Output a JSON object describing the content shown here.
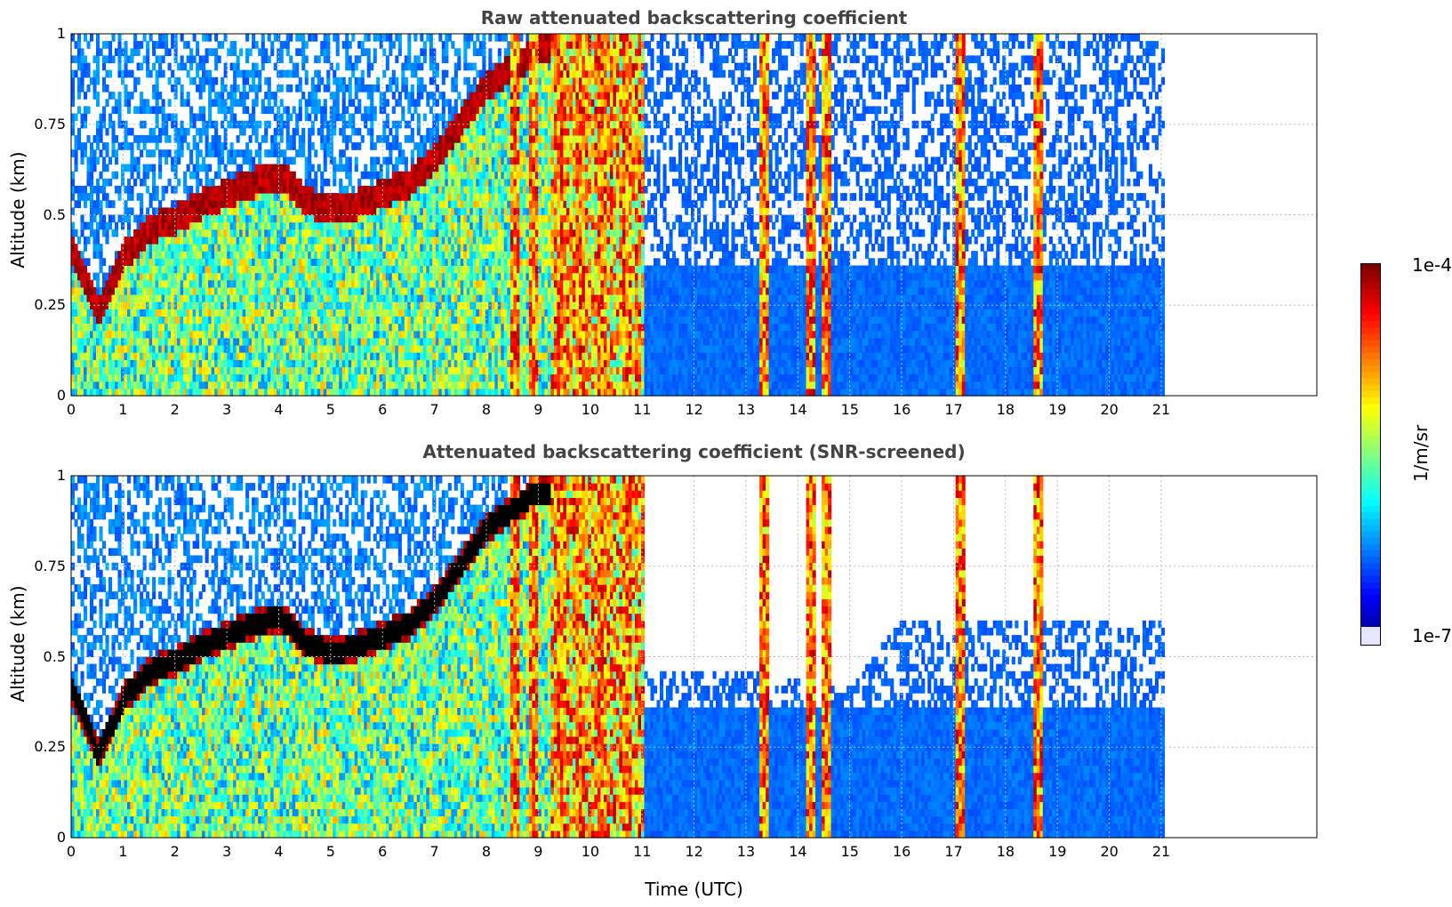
{
  "chart_data": [
    {
      "type": "heatmap",
      "title": "Raw attenuated backscattering coefficient",
      "xlabel": "",
      "ylabel": "Altitude (km)",
      "xlim": [
        0,
        24
      ],
      "ylim": [
        0,
        1
      ],
      "xticks": [
        "0",
        "1",
        "2",
        "3",
        "4",
        "5",
        "6",
        "7",
        "8",
        "9",
        "10",
        "11",
        "12",
        "13",
        "14",
        "15",
        "16",
        "17",
        "18",
        "19",
        "20",
        "21"
      ],
      "yticks": [
        "0",
        "0.25",
        "0.5",
        "0.75",
        "1"
      ],
      "grid": true,
      "data_extent_hours": [
        0,
        21
      ],
      "layer_top_km": [
        [
          0,
          0.4
        ],
        [
          0.5,
          0.22
        ],
        [
          1,
          0.38
        ],
        [
          1.5,
          0.45
        ],
        [
          2,
          0.48
        ],
        [
          2.5,
          0.52
        ],
        [
          3,
          0.55
        ],
        [
          3.5,
          0.58
        ],
        [
          4,
          0.6
        ],
        [
          4.5,
          0.53
        ],
        [
          5,
          0.5
        ],
        [
          5.5,
          0.52
        ],
        [
          6,
          0.55
        ],
        [
          6.5,
          0.58
        ],
        [
          7,
          0.65
        ],
        [
          7.5,
          0.75
        ],
        [
          8,
          0.85
        ],
        [
          8.5,
          0.9
        ],
        [
          9,
          0.95
        ]
      ],
      "intense_columns_hours": [
        8.5,
        8.9,
        9.4,
        9.8,
        10.2,
        10.7,
        13.3,
        14.2,
        14.5,
        17.1,
        18.6
      ],
      "colorbar": {
        "min": "1e-7",
        "max": "1e-4",
        "label": "1/m/sr",
        "scale": "log",
        "colormap": "jet"
      }
    },
    {
      "type": "heatmap",
      "title": "Attenuated backscattering coefficient (SNR-screened)",
      "xlabel": "Time (UTC)",
      "ylabel": "Altitude (km)",
      "xlim": [
        0,
        24
      ],
      "ylim": [
        0,
        1
      ],
      "xticks": [
        "0",
        "1",
        "2",
        "3",
        "4",
        "5",
        "6",
        "7",
        "8",
        "9",
        "10",
        "11",
        "12",
        "13",
        "14",
        "15",
        "16",
        "17",
        "18",
        "19",
        "20",
        "21"
      ],
      "yticks": [
        "0",
        "0.25",
        "0.5",
        "0.75",
        "1"
      ],
      "grid": true,
      "data_extent_hours": [
        0,
        21
      ],
      "layer_top_km": [
        [
          0,
          0.4
        ],
        [
          0.5,
          0.22
        ],
        [
          1,
          0.38
        ],
        [
          1.5,
          0.45
        ],
        [
          2,
          0.48
        ],
        [
          2.5,
          0.52
        ],
        [
          3,
          0.55
        ],
        [
          3.5,
          0.58
        ],
        [
          4,
          0.6
        ],
        [
          4.5,
          0.53
        ],
        [
          5,
          0.5
        ],
        [
          5.5,
          0.52
        ],
        [
          6,
          0.55
        ],
        [
          6.5,
          0.58
        ],
        [
          7,
          0.65
        ],
        [
          7.5,
          0.75
        ],
        [
          8,
          0.85
        ],
        [
          8.5,
          0.9
        ],
        [
          9,
          0.95
        ]
      ],
      "intense_columns_hours": [
        8.5,
        8.9,
        9.4,
        9.8,
        10.2,
        10.7,
        13.3,
        14.2,
        14.5,
        17.1,
        18.6
      ],
      "screened_top_km": [
        [
          11,
          0.45
        ],
        [
          13,
          0.45
        ],
        [
          15,
          0.4
        ],
        [
          16,
          0.6
        ],
        [
          21,
          0.6
        ]
      ],
      "colorbar": {
        "min": "1e-7",
        "max": "1e-4",
        "label": "1/m/sr",
        "scale": "log",
        "colormap": "jet"
      }
    }
  ],
  "colorbar_labels": {
    "max": "1e-4",
    "min": "1e-7",
    "unit": "1/m/sr"
  },
  "colors": {
    "title": "#444444",
    "grid": "#bbbbbb"
  }
}
